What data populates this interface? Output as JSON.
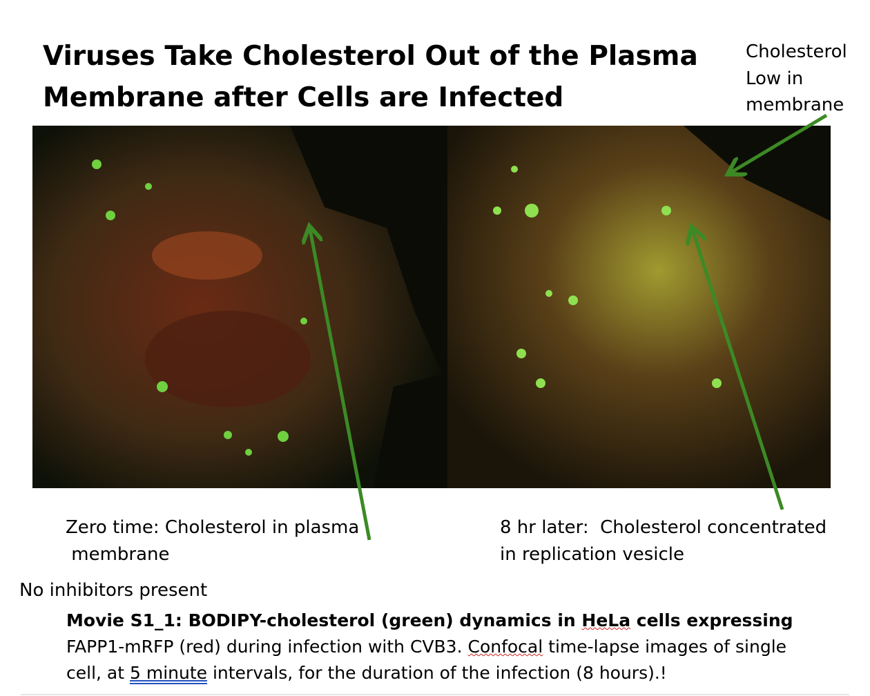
{
  "title": [
    "Viruses Take Cholesterol Out of the Plasma",
    "Membrane after Cells are Infected"
  ],
  "annotation": [
    "Cholesterol",
    "Low in",
    "membrane"
  ],
  "captions": {
    "left": [
      "Zero time: Cholesterol in plasma",
      " membrane"
    ],
    "right": [
      "8 hr later:  Cholesterol concentrated",
      "in replication vesicle"
    ]
  },
  "note": "No inhibitors present",
  "movie_caption": [
    [
      "Movie S1_1: BODIPY-cholesterol (green) dynamics in ",
      "HeLa",
      " cells expressing"
    ],
    [
      "FAPP1-mRFP (red) during infection with CVB3. ",
      "Confocal",
      " time-lapse images of single"
    ],
    [
      "cell, at ",
      "5 minute",
      " intervals, for the duration of the infection (8 hours).!"
    ]
  ]
}
